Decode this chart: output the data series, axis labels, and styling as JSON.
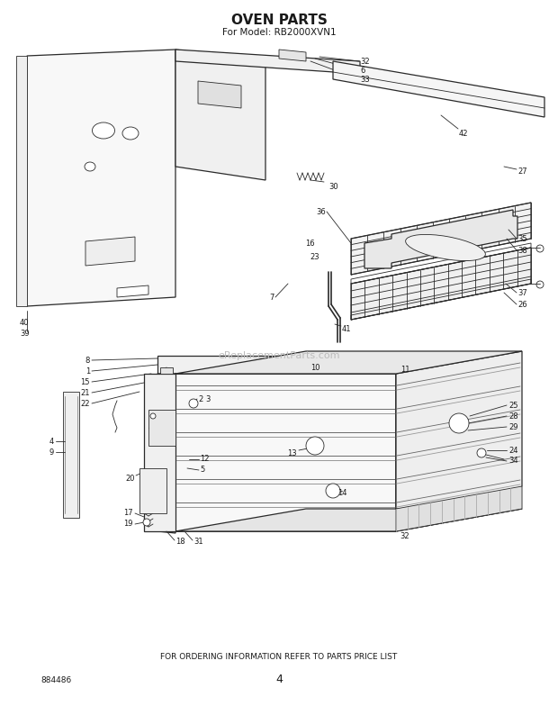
{
  "title": "OVEN PARTS",
  "subtitle": "For Model: RB2000XVN1",
  "footer_text": "FOR ORDERING INFORMATION REFER TO PARTS PRICE LIST",
  "page_number": "4",
  "doc_number": "884486",
  "background_color": "#ffffff",
  "line_color": "#2a2a2a",
  "text_color": "#1a1a1a",
  "watermark": "eReplacementParts.com",
  "title_fontsize": 11,
  "subtitle_fontsize": 7.5,
  "footer_fontsize": 6.5,
  "fig_width": 6.2,
  "fig_height": 7.84,
  "dpi": 100
}
